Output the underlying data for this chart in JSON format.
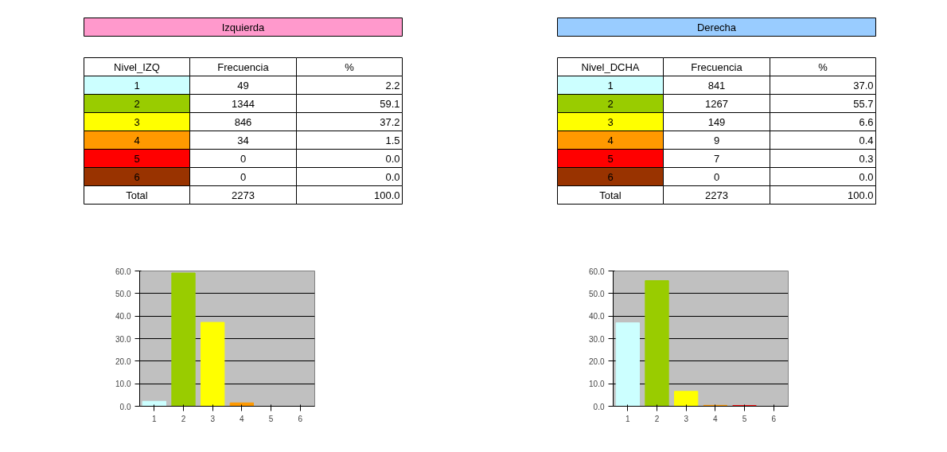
{
  "chart_data": [
    {
      "type": "bar",
      "title": "Izquierda",
      "categories": [
        "1",
        "2",
        "3",
        "4",
        "5",
        "6"
      ],
      "values": [
        2.2,
        59.1,
        37.2,
        1.5,
        0.0,
        0.0
      ],
      "colors": [
        "#ccffff",
        "#99cc00",
        "#ffff00",
        "#ff9900",
        "#ff0000",
        "#993300"
      ],
      "ylim": [
        0,
        60
      ],
      "yticks": [
        {
          "value": 0,
          "label": "0.0"
        },
        {
          "value": 10,
          "label": "10.0"
        },
        {
          "value": 20,
          "label": "20.0"
        },
        {
          "value": 30,
          "label": "30.0"
        },
        {
          "value": 40,
          "label": "40.0"
        },
        {
          "value": 50,
          "label": "50.0"
        },
        {
          "value": 60,
          "label": "60.0"
        }
      ],
      "grid": "y",
      "annotations": [
        "Nivel_IZQ",
        "Frecuencia",
        "%",
        "49",
        "2.2",
        "1344",
        "59.1",
        "846",
        "37.2",
        "34",
        "1.5",
        "0",
        "0.0",
        "0",
        "0.0",
        "Total",
        "2273",
        "100.0"
      ]
    },
    {
      "type": "bar",
      "title": "Derecha",
      "categories": [
        "1",
        "2",
        "3",
        "4",
        "5",
        "6"
      ],
      "values": [
        37.0,
        55.7,
        6.6,
        0.4,
        0.3,
        0.0
      ],
      "colors": [
        "#ccffff",
        "#99cc00",
        "#ffff00",
        "#ff9900",
        "#ff0000",
        "#993300"
      ],
      "ylim": [
        0,
        60
      ],
      "yticks": [
        {
          "value": 0,
          "label": "0.0"
        },
        {
          "value": 10,
          "label": "10.0"
        },
        {
          "value": 20,
          "label": "20.0"
        },
        {
          "value": 30,
          "label": "30.0"
        },
        {
          "value": 40,
          "label": "40.0"
        },
        {
          "value": 50,
          "label": "50.0"
        },
        {
          "value": 60,
          "label": "60.0"
        }
      ],
      "grid": "y",
      "annotations": [
        "Nivel_DCHA",
        "Frecuencia",
        "%",
        "841",
        "37.0",
        "1267",
        "55.7",
        "149",
        "6.6",
        "9",
        "0.4",
        "7",
        "0.3",
        "0",
        "0.0",
        "Total",
        "2273",
        "100.0"
      ]
    }
  ]
}
